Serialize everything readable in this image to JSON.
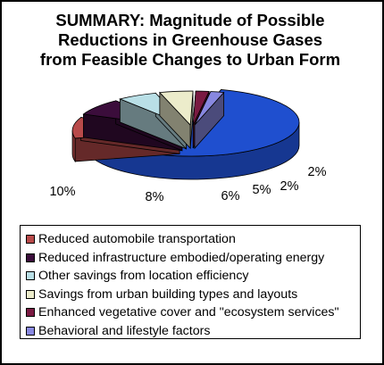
{
  "title_lines": [
    "SUMMARY:  Magnitude of Possible",
    "Reductions in Greenhouse Gases",
    "from Feasible Changes to Urban Form"
  ],
  "chart_data": {
    "type": "pie",
    "title": "SUMMARY:  Magnitude of Possible Reductions in Greenhouse Gases from Feasible Changes to Urban Form",
    "style": "3d-exploded",
    "slices": [
      {
        "label": "Reduced automobile transportation",
        "value": 10,
        "value_label": "10%",
        "color": "#b84a4a"
      },
      {
        "label": "Reduced infrastructure embodied/operating energy",
        "value": 8,
        "value_label": "8%",
        "color": "#3b0d3b"
      },
      {
        "label": "Other savings from location efficiency",
        "value": 6,
        "value_label": "6%",
        "color": "#b9dfe6"
      },
      {
        "label": "Savings from urban building types and layouts",
        "value": 5,
        "value_label": "5%",
        "color": "#ececcb"
      },
      {
        "label": "Enhanced vegetative cover and \"ecosystem services\"",
        "value": 2,
        "value_label": "2%",
        "color": "#7a1a42"
      },
      {
        "label": "Behavioral and lifestyle factors",
        "value": 2,
        "value_label": "2%",
        "color": "#8888e0"
      }
    ],
    "unlabeled_remainder": {
      "value": 67,
      "color": "#1f4fcf"
    },
    "legend_position": "bottom"
  }
}
